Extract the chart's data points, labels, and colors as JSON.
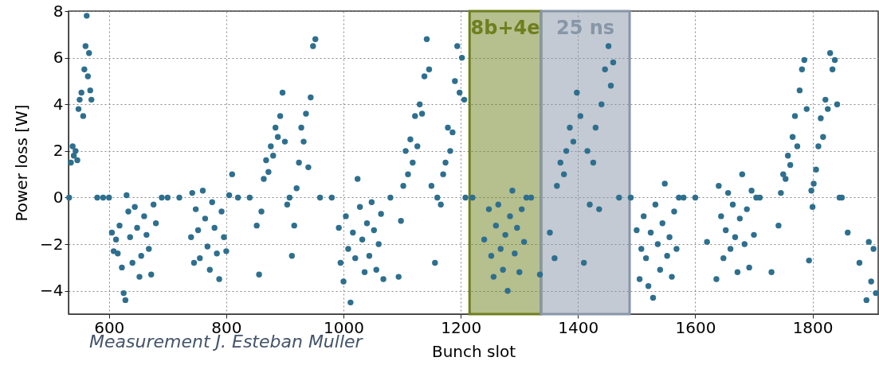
{
  "chart_data": {
    "type": "scatter",
    "xlabel": "Bunch slot",
    "ylabel": "Power loss [W]",
    "xlim": [
      531,
      1912
    ],
    "ylim": [
      -5,
      8
    ],
    "xticks": [
      600,
      800,
      1000,
      1200,
      1400,
      1600,
      1800
    ],
    "yticks": [
      -4,
      -2,
      0,
      2,
      4,
      6,
      8
    ],
    "grid": true,
    "marker": "circle",
    "series": [
      {
        "color": "#2e6f8e",
        "x": [
          532,
          535,
          538,
          540,
          543,
          546,
          548,
          550,
          553,
          556,
          558,
          560,
          562,
          564,
          566,
          568,
          570,
          580,
          590,
          600,
          605,
          608,
          612,
          615,
          618,
          622,
          625,
          628,
          630,
          633,
          636,
          640,
          644,
          648,
          652,
          655,
          660,
          664,
          668,
          672,
          676,
          680,
          690,
          700,
          720,
          740,
          742,
          745,
          748,
          752,
          755,
          760,
          764,
          768,
          772,
          776,
          780,
          784,
          788,
          792,
          796,
          800,
          805,
          810,
          820,
          840,
          852,
          856,
          860,
          864,
          868,
          872,
          876,
          880,
          884,
          888,
          892,
          896,
          900,
          904,
          908,
          912,
          916,
          920,
          924,
          928,
          932,
          936,
          940,
          944,
          948,
          952,
          960,
          980,
          992,
          995,
          1000,
          1004,
          1008,
          1012,
          1016,
          1020,
          1024,
          1028,
          1032,
          1036,
          1040,
          1044,
          1048,
          1052,
          1056,
          1060,
          1064,
          1068,
          1080,
          1094,
          1098,
          1102,
          1106,
          1110,
          1114,
          1118,
          1122,
          1126,
          1130,
          1134,
          1138,
          1142,
          1146,
          1150,
          1156,
          1160,
          1166,
          1170,
          1174,
          1178,
          1182,
          1186,
          1190,
          1194,
          1198,
          1202,
          1206,
          1208,
          1220,
          1240,
          1248,
          1252,
          1256,
          1260,
          1264,
          1268,
          1272,
          1276,
          1280,
          1284,
          1288,
          1292,
          1296,
          1300,
          1304,
          1308,
          1312,
          1320,
          1335,
          1352,
          1360,
          1364,
          1370,
          1376,
          1380,
          1386,
          1392,
          1398,
          1404,
          1410,
          1416,
          1420,
          1426,
          1430,
          1436,
          1440,
          1446,
          1452,
          1456,
          1460,
          1470,
          1490,
          1500,
          1505,
          1508,
          1512,
          1516,
          1520,
          1524,
          1528,
          1532,
          1536,
          1540,
          1544,
          1548,
          1552,
          1556,
          1560,
          1564,
          1568,
          1572,
          1580,
          1600,
          1620,
          1636,
          1640,
          1644,
          1648,
          1652,
          1656,
          1660,
          1664,
          1668,
          1672,
          1676,
          1680,
          1684,
          1688,
          1692,
          1696,
          1700,
          1704,
          1710,
          1730,
          1742,
          1746,
          1750,
          1754,
          1758,
          1762,
          1766,
          1770,
          1774,
          1778,
          1782,
          1786,
          1790,
          1794,
          1798,
          1800,
          1802,
          1806,
          1810,
          1814,
          1818,
          1822,
          1826,
          1830,
          1834,
          1838,
          1842,
          1846,
          1850,
          1860,
          1880,
          1892,
          1896,
          1900,
          1904,
          1908
        ],
        "values": [
          0,
          1.5,
          2.2,
          1.8,
          2,
          1.6,
          3.8,
          4.2,
          4.5,
          3.5,
          5.5,
          6.5,
          7.8,
          5.2,
          6.2,
          4.6,
          4.2,
          0,
          0,
          0,
          -1.5,
          -2.3,
          -1.8,
          -2.4,
          -1.2,
          -3,
          -4.1,
          -4.4,
          0.1,
          -0.6,
          -1.7,
          -2.8,
          -0.4,
          -1.3,
          -3.4,
          -2.5,
          -0.8,
          -1.6,
          -2.2,
          -3.3,
          -0.3,
          -1.1,
          0,
          0,
          0,
          -1.7,
          0.2,
          -2.8,
          -0.5,
          -1.4,
          -2.6,
          0.3,
          -0.9,
          -2.1,
          -3.1,
          -0.2,
          -1.3,
          -2.4,
          -3.5,
          -0.6,
          -1.7,
          -2.3,
          0.1,
          1,
          0,
          0,
          -1.2,
          -3.3,
          -0.6,
          0.8,
          1.6,
          1.1,
          2.2,
          1.8,
          3,
          2.6,
          3.5,
          4.5,
          2.4,
          -0.3,
          0,
          -2.5,
          -1.2,
          0.4,
          1.5,
          3,
          2.4,
          3.6,
          1.3,
          4.3,
          6.5,
          6.8,
          0,
          0,
          -1.3,
          -2.8,
          -3.6,
          -0.8,
          -2.2,
          -4.5,
          -1.5,
          -2.6,
          0.8,
          -0.4,
          -1.8,
          -3.2,
          -1.1,
          -2.5,
          -0.2,
          -1.4,
          -3.1,
          -2,
          -0.7,
          -3.5,
          0,
          -3.4,
          -1,
          0.5,
          2,
          1,
          2.5,
          1.5,
          3.5,
          2.2,
          4,
          3.6,
          5.2,
          6.8,
          5.5,
          0.5,
          -2.8,
          0,
          -0.3,
          1,
          1.5,
          3,
          2,
          2.8,
          5,
          6.5,
          4.5,
          6,
          4.2,
          0,
          0,
          -1.8,
          -0.5,
          -2.5,
          -3.4,
          -1.2,
          -0.3,
          -2.2,
          -3.1,
          -1.6,
          -4,
          -0.8,
          0.3,
          -2.4,
          -1.3,
          -3.2,
          -0.5,
          -1.9,
          0,
          0,
          -3.3,
          -1.5,
          -2.6,
          0.5,
          1.5,
          1,
          2,
          3,
          2.4,
          4.5,
          3.5,
          -2.8,
          2,
          -0.3,
          1.5,
          3,
          -0.5,
          4,
          5.5,
          6.5,
          4.8,
          5.8,
          0,
          0,
          -1.4,
          -3.5,
          -2.2,
          -0.8,
          -2.6,
          -3.8,
          -1.5,
          -4.3,
          -0.3,
          -2,
          -3.1,
          -1.1,
          0.6,
          -2.5,
          -1.7,
          -3.4,
          -0.6,
          -2.2,
          0,
          0,
          0,
          -1.9,
          -3.5,
          0.5,
          -0.8,
          -2.6,
          -1.4,
          0.2,
          -2.2,
          -0.3,
          -1.7,
          -3.2,
          -0.9,
          1,
          -2,
          -0.5,
          -3,
          0.3,
          -1.6,
          0,
          0,
          -3.2,
          -1.2,
          0.2,
          1,
          0.8,
          1.8,
          1.4,
          2.6,
          3.5,
          2.2,
          4.6,
          5.5,
          5.9,
          3.8,
          -2.7,
          0.3,
          -0.4,
          0.6,
          1.2,
          2.2,
          3.4,
          2.6,
          4.2,
          3.8,
          6.2,
          5.5,
          5.9,
          4,
          0,
          0,
          -1.5,
          -2.8,
          -4.4,
          -1.9,
          -3.6,
          -2.2,
          -4.1
        ]
      }
    ],
    "bands": [
      {
        "axis": "x",
        "from": 1215,
        "to": 1337,
        "label": "8b+4e",
        "color": "#6e7f1e"
      },
      {
        "axis": "x",
        "from": 1337,
        "to": 1488,
        "label": "25 ns",
        "color": "#8796a8"
      }
    ],
    "annotations": [
      "Measurement J. Esteban Muller"
    ]
  }
}
